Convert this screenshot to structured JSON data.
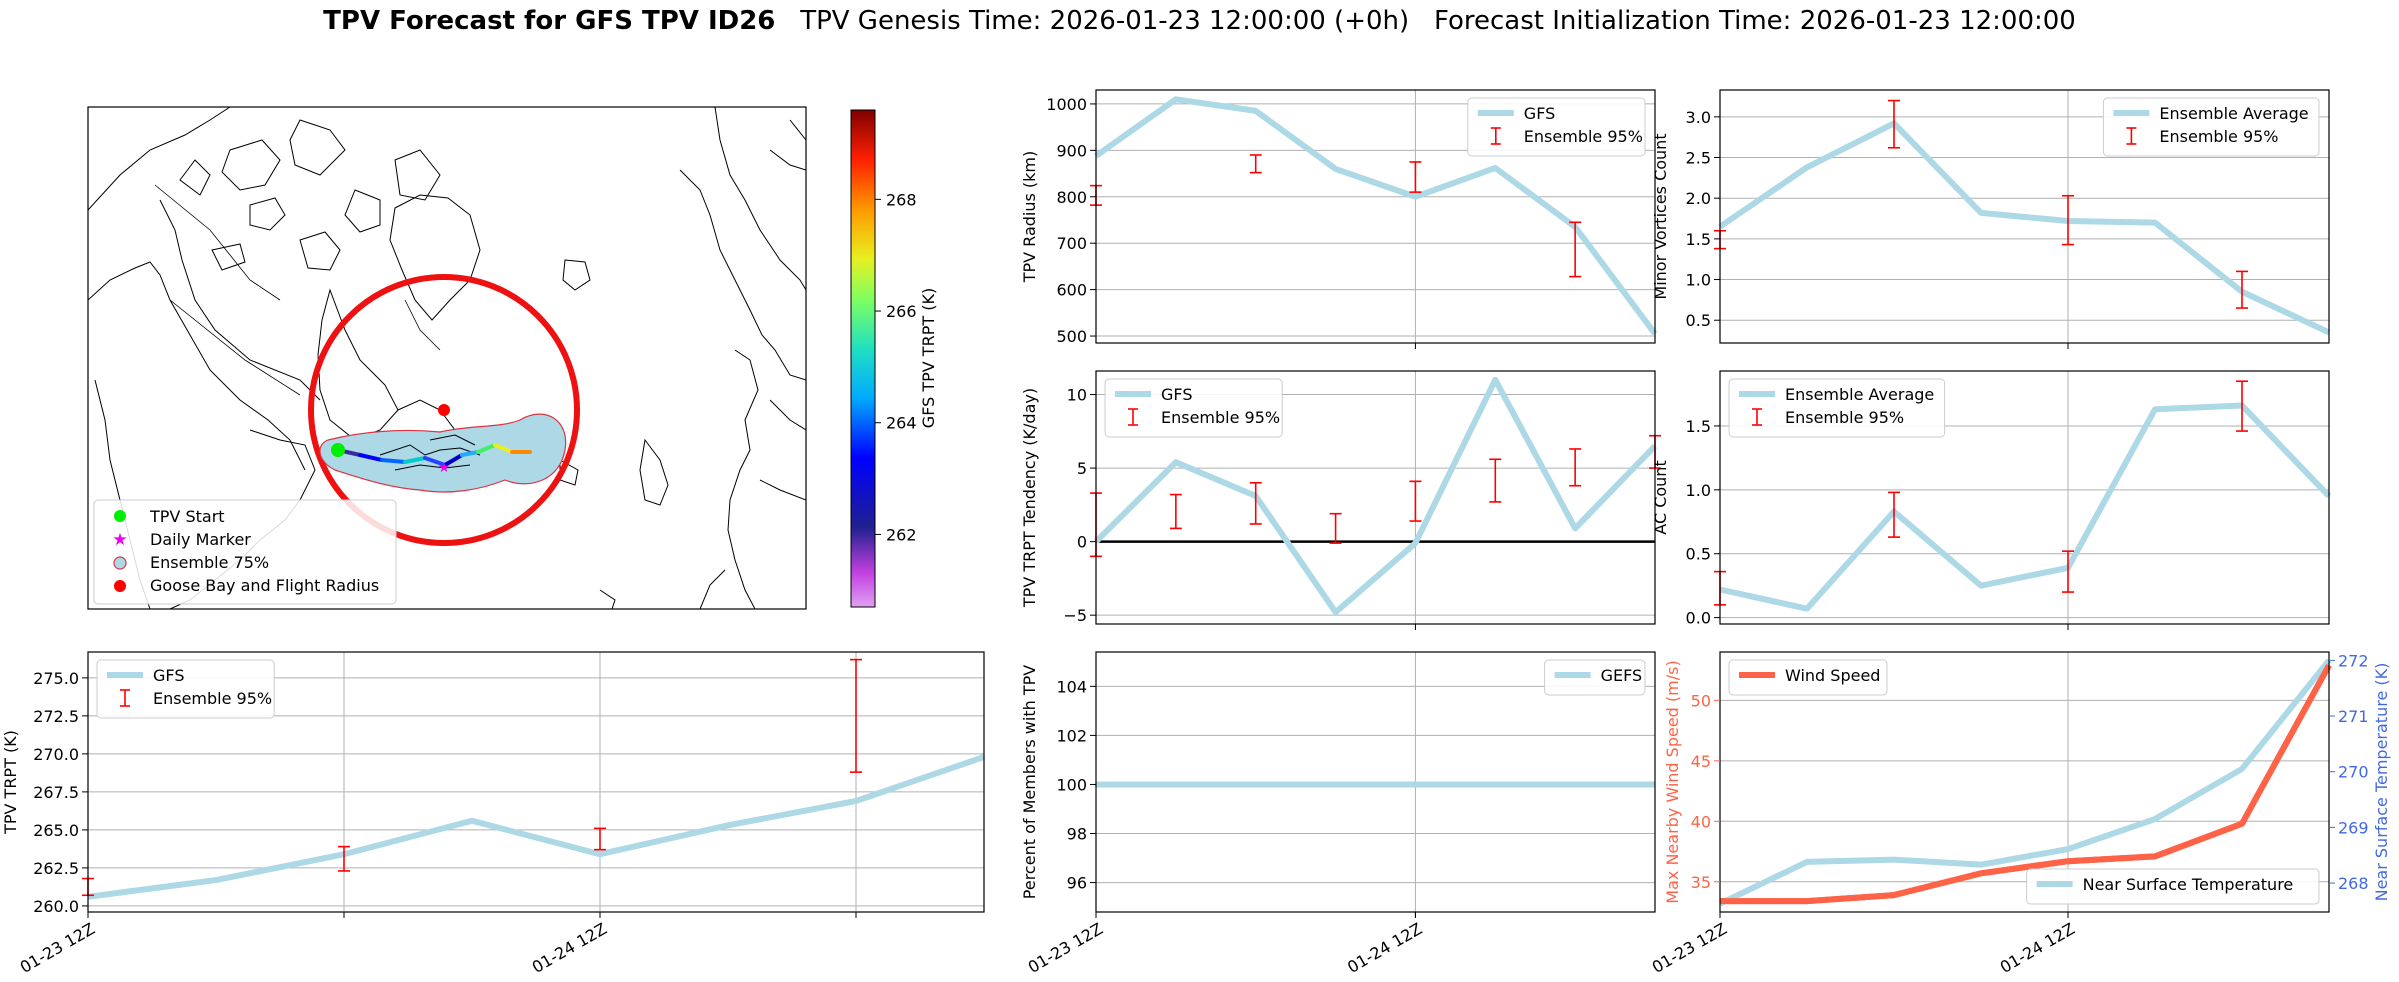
{
  "header": {
    "title_bold": "TPV Forecast for GFS TPV ID26",
    "title_genesis": "TPV Genesis Time: 2026-01-23 12:00:00 (+0h)",
    "title_init": "Forecast Initialization Time: 2026-01-23 12:00:00"
  },
  "colors": {
    "gfs_line": "#add8e6",
    "error_bar": "#ff0000",
    "wind_line": "#ff6347",
    "temp_axis": "#4169e1",
    "track_circle": "#ee1111",
    "ensemble_fill": "#a8d8e8"
  },
  "map": {
    "colorbar_label": "GFS TPV TRPT (K)",
    "colorbar_ticks": [
      "262",
      "264",
      "266",
      "268"
    ],
    "colorbar_min": 260.7,
    "colorbar_max": 269.6,
    "legend": [
      {
        "label": "TPV Start",
        "icon": "green-dot-icon"
      },
      {
        "label": "Daily Marker",
        "icon": "magenta-star-icon"
      },
      {
        "label": "Ensemble 75%",
        "icon": "ensemble-swatch-icon"
      },
      {
        "label": "Goose Bay and Flight Radius",
        "icon": "red-dot-icon"
      }
    ]
  },
  "chart_data": [
    {
      "id": "radius",
      "type": "line",
      "ylabel": "TPV Radius (km)",
      "ylim": [
        485,
        1030
      ],
      "yticks": [
        500,
        600,
        700,
        800,
        900,
        1000
      ],
      "ytick_labels": [
        "500",
        "600",
        "700",
        "800",
        "900",
        "1000"
      ],
      "xlim": [
        0,
        7
      ],
      "xgrid": [
        4
      ],
      "x": [
        0,
        1,
        2,
        3,
        4,
        5,
        6,
        7
      ],
      "series": [
        {
          "name": "GFS",
          "values": [
            888,
            1010,
            985,
            860,
            800,
            862,
            735,
            505
          ]
        }
      ],
      "errorbars": [
        {
          "x": 0,
          "lo": 782,
          "hi": 824
        },
        {
          "x": 2,
          "lo": 852,
          "hi": 890
        },
        {
          "x": 4,
          "lo": 810,
          "hi": 875
        },
        {
          "x": 6,
          "lo": 628,
          "hi": 745
        }
      ],
      "legend": [
        "GFS",
        "Ensemble 95%"
      ],
      "legend_pos": "top-right",
      "xticklabels": []
    },
    {
      "id": "minor",
      "type": "line",
      "ylabel": "Minor Vortices Count",
      "ylim": [
        0.22,
        3.33
      ],
      "yticks": [
        0.5,
        1.0,
        1.5,
        2.0,
        2.5,
        3.0
      ],
      "ytick_labels": [
        "0.5",
        "1.0",
        "1.5",
        "2.0",
        "2.5",
        "3.0"
      ],
      "xlim": [
        0,
        7
      ],
      "xgrid": [
        4
      ],
      "x": [
        0,
        1,
        2,
        3,
        4,
        5,
        6,
        7
      ],
      "series": [
        {
          "name": "Ensemble Average",
          "values": [
            1.65,
            2.38,
            2.92,
            1.82,
            1.72,
            1.7,
            0.85,
            0.35
          ]
        }
      ],
      "errorbars": [
        {
          "x": 0,
          "lo": 1.38,
          "hi": 1.6
        },
        {
          "x": 2,
          "lo": 2.62,
          "hi": 3.2
        },
        {
          "x": 4,
          "lo": 1.43,
          "hi": 2.03
        },
        {
          "x": 6,
          "lo": 0.65,
          "hi": 1.1
        }
      ],
      "legend": [
        "Ensemble Average",
        "Ensemble 95%"
      ],
      "legend_pos": "top-right",
      "xticklabels": []
    },
    {
      "id": "tendency",
      "type": "line",
      "ylabel": "TPV TRPT Tendency (K/day)",
      "ylim": [
        -5.6,
        11.6
      ],
      "yticks": [
        -5,
        0,
        5,
        10
      ],
      "ytick_labels": [
        "−5",
        "0",
        "5",
        "10"
      ],
      "zero_line": true,
      "xlim": [
        0,
        7
      ],
      "xgrid": [
        4
      ],
      "x": [
        0,
        1,
        2,
        3,
        4,
        5,
        6,
        7
      ],
      "series": [
        {
          "name": "GFS",
          "values": [
            0.0,
            5.4,
            3.1,
            -4.8,
            -0.1,
            11.0,
            0.9,
            6.5
          ]
        }
      ],
      "errorbars": [
        {
          "x": 0,
          "lo": -1.0,
          "hi": 3.3
        },
        {
          "x": 1,
          "lo": 0.9,
          "hi": 3.2
        },
        {
          "x": 2,
          "lo": 1.2,
          "hi": 4.0
        },
        {
          "x": 3,
          "lo": -0.1,
          "hi": 1.9
        },
        {
          "x": 4,
          "lo": 1.4,
          "hi": 4.1
        },
        {
          "x": 5,
          "lo": 2.7,
          "hi": 5.6
        },
        {
          "x": 6,
          "lo": 3.8,
          "hi": 6.3
        },
        {
          "x": 7,
          "lo": 5.0,
          "hi": 7.2
        }
      ],
      "legend": [
        "GFS",
        "Ensemble 95%"
      ],
      "legend_pos": "top-left",
      "xticklabels": []
    },
    {
      "id": "ac",
      "type": "line",
      "ylabel": "AC Count",
      "ylim": [
        -0.05,
        1.93
      ],
      "yticks": [
        0.0,
        0.5,
        1.0,
        1.5
      ],
      "ytick_labels": [
        "0.0",
        "0.5",
        "1.0",
        "1.5"
      ],
      "xlim": [
        0,
        7
      ],
      "xgrid": [
        4
      ],
      "x": [
        0,
        1,
        2,
        3,
        4,
        5,
        6,
        7
      ],
      "series": [
        {
          "name": "Ensemble Average",
          "values": [
            0.22,
            0.07,
            0.83,
            0.25,
            0.39,
            1.63,
            1.66,
            0.95
          ]
        }
      ],
      "errorbars": [
        {
          "x": 0,
          "lo": 0.1,
          "hi": 0.36
        },
        {
          "x": 2,
          "lo": 0.63,
          "hi": 0.98
        },
        {
          "x": 4,
          "lo": 0.2,
          "hi": 0.52
        },
        {
          "x": 6,
          "lo": 1.46,
          "hi": 1.85
        }
      ],
      "legend": [
        "Ensemble Average",
        "Ensemble 95%"
      ],
      "legend_pos": "top-left",
      "xticklabels": []
    },
    {
      "id": "trpt",
      "type": "line",
      "ylabel": "TPV TRPT (K)",
      "ylim": [
        259.6,
        276.7
      ],
      "yticks": [
        260.0,
        262.5,
        265.0,
        267.5,
        270.0,
        272.5,
        275.0
      ],
      "ytick_labels": [
        "260.0",
        "262.5",
        "265.0",
        "267.5",
        "270.0",
        "272.5",
        "275.0"
      ],
      "xlim": [
        0,
        7
      ],
      "xgrid": [
        2,
        4,
        6
      ],
      "x": [
        0,
        1,
        2,
        3,
        4,
        5,
        6,
        7
      ],
      "series": [
        {
          "name": "GFS",
          "values": [
            260.6,
            261.7,
            263.4,
            265.6,
            263.4,
            265.3,
            266.9,
            269.8
          ]
        }
      ],
      "errorbars": [
        {
          "x": 0,
          "lo": 260.7,
          "hi": 261.8
        },
        {
          "x": 2,
          "lo": 262.3,
          "hi": 263.9
        },
        {
          "x": 4,
          "lo": 263.7,
          "hi": 265.1
        },
        {
          "x": 6,
          "lo": 268.8,
          "hi": 276.2
        }
      ],
      "legend": [
        "GFS",
        "Ensemble 95%"
      ],
      "legend_pos": "top-left",
      "xticks": [
        0,
        4
      ],
      "xticklabels": [
        "01-23 12Z",
        "01-24 12Z"
      ]
    },
    {
      "id": "members",
      "type": "line",
      "ylabel": "Percent of Members with TPV",
      "ylim": [
        94.8,
        105.4
      ],
      "yticks": [
        96,
        98,
        100,
        102,
        104
      ],
      "ytick_labels": [
        "96",
        "98",
        "100",
        "102",
        "104"
      ],
      "xlim": [
        0,
        7
      ],
      "xgrid": [
        4
      ],
      "x": [
        0,
        7
      ],
      "series": [
        {
          "name": "GEFS",
          "values": [
            100,
            100
          ]
        }
      ],
      "errorbars": [],
      "legend": [
        "GEFS"
      ],
      "legend_pos": "top-right",
      "xticks": [
        0,
        4
      ],
      "xticklabels": [
        "01-23 12Z",
        "01-24 12Z"
      ]
    },
    {
      "id": "wind",
      "type": "line",
      "ylabel": "Max Nearby Wind Speed (m/s)",
      "ylabel_right": "Near Surface Temperature (K)",
      "ylim": [
        32.5,
        54.0
      ],
      "yticks": [
        35,
        40,
        45,
        50
      ],
      "ytick_labels": [
        "35",
        "40",
        "45",
        "50"
      ],
      "ylim_right": [
        267.48,
        272.15
      ],
      "yticks_right": [
        268,
        269,
        270,
        271,
        272
      ],
      "ytick_labels_right": [
        "268",
        "269",
        "270",
        "271",
        "272"
      ],
      "xlim": [
        0,
        7
      ],
      "xgrid": [
        4
      ],
      "x": [
        0,
        1,
        2,
        3,
        4,
        5,
        6,
        7
      ],
      "series": [
        {
          "name": "Wind Speed",
          "values": [
            33.4,
            33.4,
            33.9,
            35.7,
            36.7,
            37.1,
            39.8,
            52.9
          ],
          "axis": "left"
        },
        {
          "name": "Near Surface Temperature",
          "values": [
            267.63,
            268.38,
            268.42,
            268.33,
            268.61,
            269.15,
            270.05,
            272.0
          ],
          "axis": "right"
        }
      ],
      "errorbars": [],
      "legend": [
        "Wind Speed"
      ],
      "legend_right": [
        "Near Surface Temperature"
      ],
      "xticks": [
        0,
        4
      ],
      "xticklabels": [
        "01-23 12Z",
        "01-24 12Z"
      ]
    }
  ]
}
